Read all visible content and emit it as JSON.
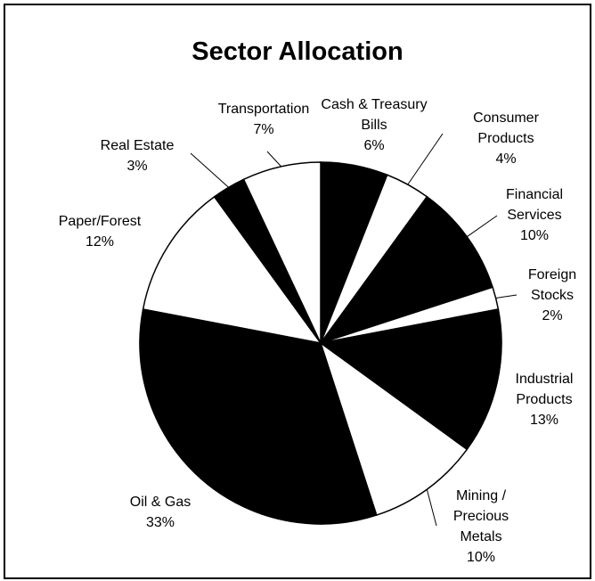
{
  "chart_data": {
    "type": "pie",
    "title": "Sector Allocation",
    "categories": [
      "Cash & Treasury Bills",
      "Consumer Products",
      "Financial Services",
      "Foreign Stocks",
      "Industrial Products",
      "Mining / Precious Metals",
      "Oil & Gas",
      "Paper/Forest",
      "Real Estate",
      "Transportation"
    ],
    "values": [
      6,
      4,
      10,
      2,
      13,
      10,
      33,
      12,
      3,
      7
    ],
    "value_labels": [
      "6%",
      "4%",
      "10%",
      "2%",
      "13%",
      "10%",
      "33%",
      "12%",
      "3%",
      "7%"
    ],
    "colors": [
      "#000000",
      "#ffffff",
      "#000000",
      "#ffffff",
      "#000000",
      "#ffffff",
      "#000000",
      "#ffffff",
      "#000000",
      "#ffffff"
    ]
  }
}
